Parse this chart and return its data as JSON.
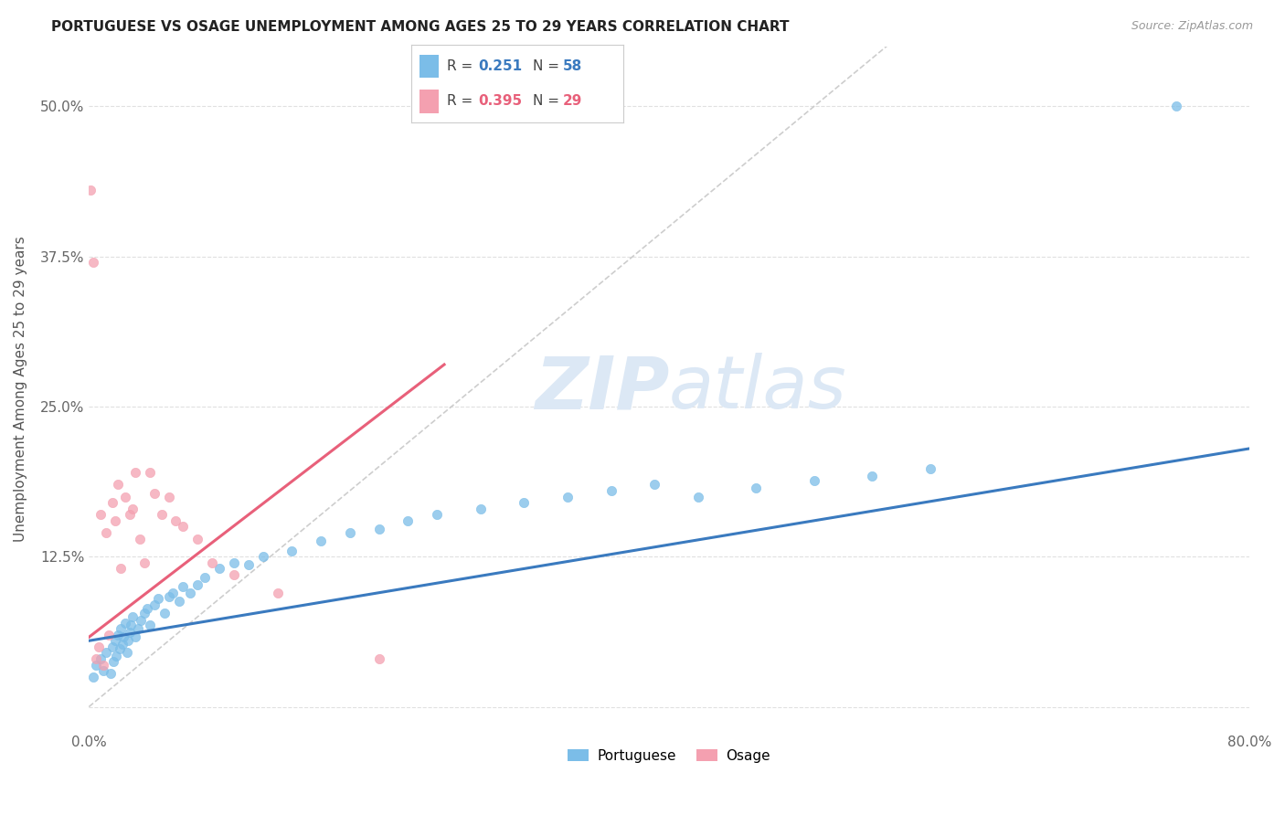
{
  "title": "PORTUGUESE VS OSAGE UNEMPLOYMENT AMONG AGES 25 TO 29 YEARS CORRELATION CHART",
  "source": "Source: ZipAtlas.com",
  "ylabel": "Unemployment Among Ages 25 to 29 years",
  "xlim": [
    0.0,
    0.8
  ],
  "ylim": [
    -0.02,
    0.55
  ],
  "xtick_positions": [
    0.0,
    0.2,
    0.4,
    0.6,
    0.8
  ],
  "xticklabels": [
    "0.0%",
    "",
    "",
    "",
    "80.0%"
  ],
  "ytick_positions": [
    0.0,
    0.125,
    0.25,
    0.375,
    0.5
  ],
  "ytick_labels": [
    "",
    "12.5%",
    "25.0%",
    "37.5%",
    "50.0%"
  ],
  "portuguese_color": "#7bbde8",
  "osage_color": "#f4a0b0",
  "portuguese_line_color": "#3a7abf",
  "osage_line_color": "#e8607a",
  "diagonal_color": "#c8c8c8",
  "watermark_color": "#dce8f5",
  "background_color": "#ffffff",
  "portuguese_scatter_x": [
    0.003,
    0.005,
    0.008,
    0.01,
    0.012,
    0.015,
    0.016,
    0.017,
    0.018,
    0.019,
    0.02,
    0.021,
    0.022,
    0.023,
    0.024,
    0.025,
    0.026,
    0.027,
    0.028,
    0.029,
    0.03,
    0.032,
    0.034,
    0.036,
    0.038,
    0.04,
    0.042,
    0.045,
    0.048,
    0.052,
    0.055,
    0.058,
    0.062,
    0.065,
    0.07,
    0.075,
    0.08,
    0.09,
    0.1,
    0.11,
    0.12,
    0.14,
    0.16,
    0.18,
    0.2,
    0.22,
    0.24,
    0.27,
    0.3,
    0.33,
    0.36,
    0.39,
    0.42,
    0.46,
    0.5,
    0.54,
    0.58,
    0.75
  ],
  "portuguese_scatter_y": [
    0.025,
    0.035,
    0.04,
    0.03,
    0.045,
    0.028,
    0.05,
    0.038,
    0.055,
    0.042,
    0.06,
    0.048,
    0.065,
    0.052,
    0.058,
    0.07,
    0.045,
    0.055,
    0.062,
    0.068,
    0.075,
    0.058,
    0.065,
    0.072,
    0.078,
    0.082,
    0.068,
    0.085,
    0.09,
    0.078,
    0.092,
    0.095,
    0.088,
    0.1,
    0.095,
    0.102,
    0.108,
    0.115,
    0.12,
    0.118,
    0.125,
    0.13,
    0.138,
    0.145,
    0.148,
    0.155,
    0.16,
    0.165,
    0.17,
    0.175,
    0.18,
    0.185,
    0.175,
    0.182,
    0.188,
    0.192,
    0.198,
    0.5
  ],
  "osage_scatter_x": [
    0.001,
    0.003,
    0.005,
    0.007,
    0.008,
    0.01,
    0.012,
    0.014,
    0.016,
    0.018,
    0.02,
    0.022,
    0.025,
    0.028,
    0.03,
    0.032,
    0.035,
    0.038,
    0.042,
    0.045,
    0.05,
    0.055,
    0.06,
    0.065,
    0.075,
    0.085,
    0.1,
    0.13,
    0.2
  ],
  "osage_scatter_y": [
    0.43,
    0.37,
    0.04,
    0.05,
    0.16,
    0.035,
    0.145,
    0.06,
    0.17,
    0.155,
    0.185,
    0.115,
    0.175,
    0.16,
    0.165,
    0.195,
    0.14,
    0.12,
    0.195,
    0.178,
    0.16,
    0.175,
    0.155,
    0.15,
    0.14,
    0.12,
    0.11,
    0.095,
    0.04
  ],
  "portuguese_line_x": [
    0.0,
    0.8
  ],
  "portuguese_line_y": [
    0.055,
    0.215
  ],
  "osage_line_x": [
    0.0,
    0.245
  ],
  "osage_line_y": [
    0.058,
    0.285
  ]
}
